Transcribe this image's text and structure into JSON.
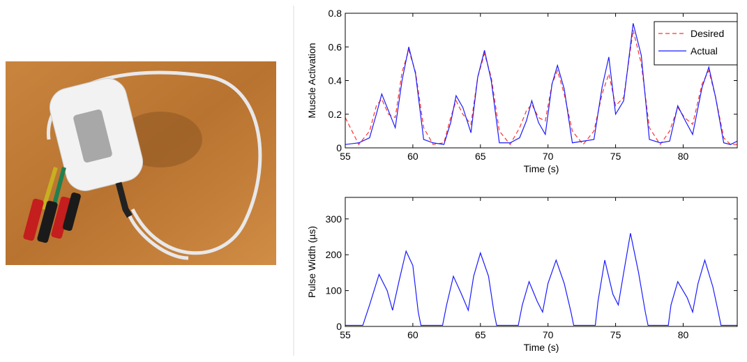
{
  "chart_data": [
    {
      "type": "line",
      "xlabel": "Time (s)",
      "ylabel": "Muscle Activation",
      "x": [
        55,
        56,
        56.8,
        57.3,
        57.7,
        58.2,
        58.7,
        59.2,
        59.7,
        60.2,
        60.8,
        61.5,
        62.3,
        62.8,
        63.2,
        63.7,
        64.3,
        64.8,
        65.3,
        65.8,
        66.4,
        67.2,
        67.9,
        68.4,
        68.8,
        69.3,
        69.8,
        70.3,
        70.7,
        71.2,
        71.8,
        72.6,
        73.4,
        74.0,
        74.5,
        75.0,
        75.6,
        76.3,
        76.9,
        77.5,
        78.3,
        79.0,
        79.6,
        80.1,
        80.7,
        81.4,
        81.9,
        82.4,
        83.0,
        83.5,
        84.0
      ],
      "series": [
        {
          "name": "Desired",
          "color": "#ff3030",
          "linestyle": "dashed",
          "values": [
            0.18,
            0.02,
            0.1,
            0.25,
            0.29,
            0.2,
            0.18,
            0.45,
            0.58,
            0.45,
            0.12,
            0.02,
            0.03,
            0.18,
            0.28,
            0.2,
            0.14,
            0.42,
            0.56,
            0.42,
            0.1,
            0.02,
            0.12,
            0.22,
            0.26,
            0.18,
            0.16,
            0.38,
            0.46,
            0.32,
            0.1,
            0.02,
            0.1,
            0.32,
            0.44,
            0.25,
            0.3,
            0.7,
            0.5,
            0.12,
            0.02,
            0.1,
            0.24,
            0.18,
            0.14,
            0.38,
            0.46,
            0.3,
            0.06,
            0.02,
            0.02
          ]
        },
        {
          "name": "Actual",
          "color": "#1a1aff",
          "linestyle": "solid",
          "values": [
            0.02,
            0.03,
            0.06,
            0.2,
            0.32,
            0.22,
            0.12,
            0.4,
            0.6,
            0.44,
            0.05,
            0.03,
            0.02,
            0.15,
            0.31,
            0.24,
            0.09,
            0.42,
            0.58,
            0.4,
            0.03,
            0.03,
            0.06,
            0.16,
            0.28,
            0.15,
            0.08,
            0.38,
            0.49,
            0.35,
            0.03,
            0.04,
            0.05,
            0.36,
            0.54,
            0.2,
            0.28,
            0.74,
            0.55,
            0.05,
            0.03,
            0.04,
            0.25,
            0.17,
            0.08,
            0.36,
            0.48,
            0.3,
            0.03,
            0.02,
            0.04
          ]
        }
      ],
      "xlim": [
        55,
        84
      ],
      "xticks": [
        55,
        60,
        65,
        70,
        75,
        80
      ],
      "ylim": [
        0,
        0.8
      ],
      "yticks": [
        0,
        0.2,
        0.4,
        0.6,
        0.8
      ],
      "legend": "upper right"
    },
    {
      "type": "line",
      "xlabel": "Time (s)",
      "ylabel": "Pulse Width (µs)",
      "x": [
        55,
        56.3,
        56.8,
        57.5,
        58.1,
        58.5,
        59.0,
        59.5,
        60.0,
        60.4,
        60.6,
        62.2,
        62.5,
        63.0,
        63.6,
        64.1,
        64.5,
        65.0,
        65.6,
        66.0,
        66.2,
        67.8,
        68.1,
        68.6,
        69.2,
        69.6,
        70.0,
        70.6,
        71.2,
        71.7,
        71.9,
        73.5,
        73.7,
        74.2,
        74.8,
        75.2,
        75.6,
        76.1,
        76.7,
        77.2,
        77.4,
        78.9,
        79.1,
        79.6,
        80.3,
        80.7,
        81.1,
        81.6,
        82.2,
        82.6,
        82.8,
        84.0
      ],
      "series": [
        {
          "color": "#1a1aff",
          "linestyle": "solid",
          "values": [
            3,
            3,
            60,
            145,
            100,
            45,
            130,
            210,
            170,
            40,
            3,
            3,
            60,
            140,
            90,
            45,
            140,
            205,
            140,
            40,
            3,
            3,
            60,
            125,
            70,
            40,
            120,
            185,
            120,
            40,
            3,
            3,
            70,
            185,
            90,
            60,
            150,
            260,
            150,
            40,
            3,
            3,
            60,
            125,
            80,
            40,
            120,
            185,
            110,
            40,
            3,
            3
          ]
        }
      ],
      "xlim": [
        55,
        84
      ],
      "xticks": [
        55,
        60,
        65,
        70,
        75,
        80
      ],
      "ylim": [
        0,
        360
      ],
      "yticks": [
        0,
        100,
        200,
        300
      ]
    }
  ]
}
